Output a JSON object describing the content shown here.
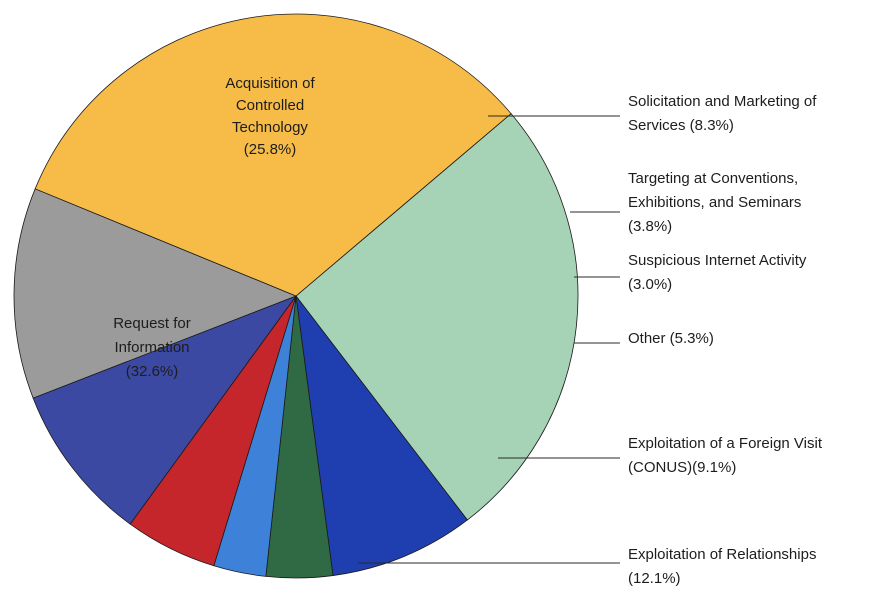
{
  "chart_data": {
    "type": "pie",
    "title": "",
    "slices": [
      {
        "label": "Acquisition of Controlled Technology (25.8%)",
        "lines": [
          "Acquisition of",
          "Controlled",
          "Technology",
          "(25.8%)"
        ],
        "value": 25.8,
        "color": "#a6d3b5",
        "label_position": "inside"
      },
      {
        "label": "Solicitation and Marketing of Services (8.3%)",
        "lines": [
          "Solicitation and Marketing of",
          "Services (8.3%)"
        ],
        "value": 8.3,
        "color": "#1f3fb0",
        "label_position": "outside"
      },
      {
        "label": "Targeting at Conventions, Exhibitions, and Seminars (3.8%)",
        "lines": [
          "Targeting at Conventions,",
          "Exhibitions, and Seminars",
          "(3.8%)"
        ],
        "value": 3.8,
        "color": "#2f6a45",
        "label_position": "outside"
      },
      {
        "label": "Suspicious Internet Activity (3.0%)",
        "lines": [
          "Suspicious Internet Activity",
          "(3.0%)"
        ],
        "value": 3.0,
        "color": "#3d82d8",
        "label_position": "outside"
      },
      {
        "label": "Other (5.3%)",
        "lines": [
          "Other (5.3%)"
        ],
        "value": 5.3,
        "color": "#c4262b",
        "label_position": "outside"
      },
      {
        "label": "Exploitation of a Foreign Visit (CONUS)(9.1%)",
        "lines": [
          "Exploitation of a Foreign Visit",
          "(CONUS)(9.1%)"
        ],
        "value": 9.1,
        "color": "#3c49a2",
        "label_position": "outside"
      },
      {
        "label": "Exploitation of Relationships (12.1%)",
        "lines": [
          "Exploitation of Relationships",
          "(12.1%)"
        ],
        "value": 12.1,
        "color": "#9b9b9b",
        "label_position": "outside"
      },
      {
        "label": "Request for Information (32.6%)",
        "lines": [
          "Request for",
          "Information",
          "(32.6%)"
        ],
        "value": 32.6,
        "color": "#f7bc47",
        "label_position": "inside"
      }
    ],
    "legend": "none",
    "start_angle_deg": -40.3
  }
}
